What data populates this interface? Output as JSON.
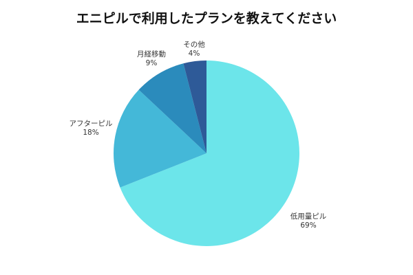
{
  "chart_data": {
    "type": "pie",
    "title": "エニピルで利用したプランを教えてください",
    "categories": [
      "低用量ピル",
      "アフターピル",
      "月経移動",
      "その他"
    ],
    "values": [
      69,
      18,
      9,
      4
    ],
    "value_labels": [
      "69%",
      "18%",
      "9%",
      "4%"
    ],
    "colors": [
      "#6ce5ea",
      "#44b8d8",
      "#2b8bbc",
      "#2e5a98"
    ],
    "start_angle_deg": 0,
    "direction": "clockwise",
    "legend": "none"
  }
}
